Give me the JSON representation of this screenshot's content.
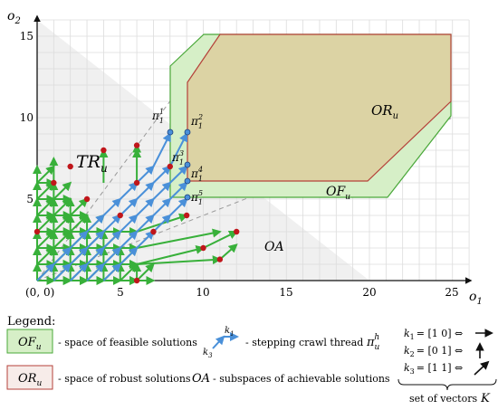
{
  "axes": {
    "y_name": "o",
    "y_sub": "2",
    "x_name": "o",
    "x_sub": "1",
    "origin_label": "(0, 0)",
    "x_ticks": [
      "5",
      "10",
      "15",
      "20",
      "25"
    ],
    "y_ticks": [
      "5",
      "10",
      "15"
    ]
  },
  "regions": {
    "tr_main": "TR",
    "tr_sub": "u",
    "or_main": "OR",
    "or_sub": "u",
    "of_main": "OF",
    "of_sub": "u",
    "oa_label": "OA"
  },
  "thread_points": [
    {
      "sub": "1",
      "sup": "1"
    },
    {
      "sub": "1",
      "sup": "2"
    },
    {
      "sub": "1",
      "sup": "3"
    },
    {
      "sub": "1",
      "sup": "4"
    },
    {
      "sub": "1",
      "sup": "5"
    }
  ],
  "legend": {
    "title": "Legend:",
    "feasible_main": "OF",
    "feasible_sub": "u",
    "feasible_text": "- space of feasible solutions",
    "robust_main": "OR",
    "robust_sub": "u",
    "robust_text": "- space of robust solutions",
    "achievable_label": "OA",
    "achievable_text": "- subspaces of achievable solutions",
    "thread_text": "- stepping crawl thread",
    "thread_symbol": "π",
    "thread_sub": "u",
    "thread_sup": "h",
    "thread_k1": "k",
    "thread_k1_sub": "1",
    "thread_k3": "k",
    "thread_k3_sub": "3",
    "vectors": [
      {
        "k": "k",
        "sub": "1",
        "value": "= [1  0] ⇔"
      },
      {
        "k": "k",
        "sub": "2",
        "value": "= [0  1] ⇔"
      },
      {
        "k": "k",
        "sub": "3",
        "value": "= [1  1] ⇔"
      }
    ],
    "vectors_caption": "set of vectors",
    "vectors_symbol": "K"
  },
  "colors": {
    "green_arrow": "#38b03a",
    "blue_arrow": "#4a90d9",
    "red_dot": "#c0161b",
    "feasible_fill": "#d6efc7",
    "feasible_stroke": "#4aa83a",
    "robust_fill": "#dcd3a4",
    "robust_stroke": "#b5413a",
    "achievable_fill": "#f0f0f0",
    "grid": "#dcdcdc"
  }
}
